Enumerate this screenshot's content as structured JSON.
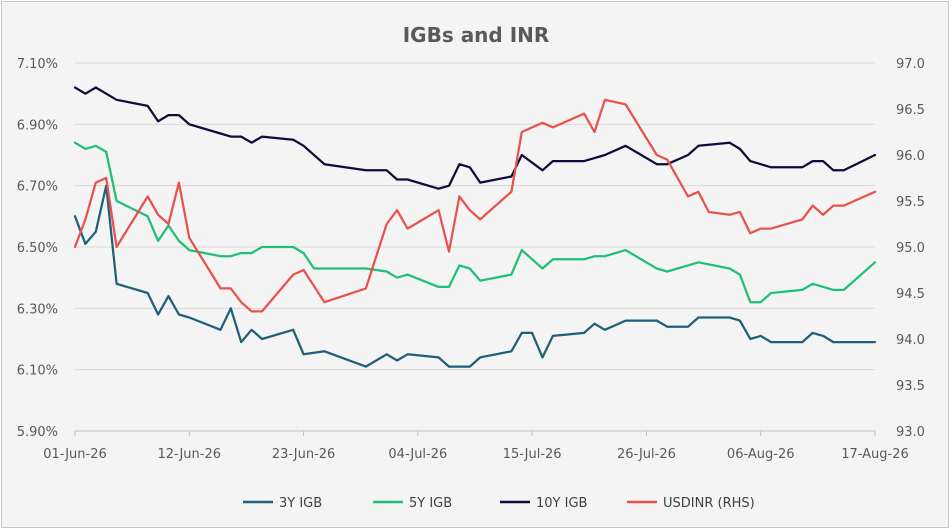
{
  "chart_data": {
    "type": "line",
    "title": "IGBs and INR",
    "xlabel": "",
    "ylabel": "",
    "x_tick_labels": [
      "01-Jun-26",
      "12-Jun-26",
      "23-Jun-26",
      "04-Jul-26",
      "15-Jul-26",
      "26-Jul-26",
      "06-Aug-26",
      "17-Aug-26"
    ],
    "x_range_days": [
      0,
      77
    ],
    "y_left": {
      "ticks": [
        "5.90%",
        "6.10%",
        "6.30%",
        "6.50%",
        "6.70%",
        "6.90%",
        "7.10%"
      ],
      "ylim": [
        5.9,
        7.1
      ]
    },
    "y_right": {
      "ticks": [
        "93.0",
        "93.5",
        "94.0",
        "94.5",
        "95.0",
        "95.5",
        "96.0",
        "96.5",
        "97.0"
      ],
      "ylim": [
        93.0,
        97.0
      ]
    },
    "grid": "horizontal",
    "legend_position": "bottom",
    "series": [
      {
        "name": "3Y IGB",
        "axis": "left",
        "color": "#1f5f7a",
        "points": [
          [
            0,
            6.6
          ],
          [
            1,
            6.51
          ],
          [
            2,
            6.55
          ],
          [
            3,
            6.7
          ],
          [
            4,
            6.38
          ],
          [
            7,
            6.35
          ],
          [
            8,
            6.28
          ],
          [
            9,
            6.34
          ],
          [
            10,
            6.28
          ],
          [
            11,
            6.27
          ],
          [
            14,
            6.23
          ],
          [
            15,
            6.3
          ],
          [
            16,
            6.19
          ],
          [
            17,
            6.23
          ],
          [
            18,
            6.2
          ],
          [
            21,
            6.23
          ],
          [
            22,
            6.15
          ],
          [
            24,
            6.16
          ],
          [
            28,
            6.11
          ],
          [
            30,
            6.15
          ],
          [
            31,
            6.13
          ],
          [
            32,
            6.15
          ],
          [
            35,
            6.14
          ],
          [
            36,
            6.11
          ],
          [
            38,
            6.11
          ],
          [
            39,
            6.14
          ],
          [
            42,
            6.16
          ],
          [
            43,
            6.22
          ],
          [
            44,
            6.22
          ],
          [
            45,
            6.14
          ],
          [
            46,
            6.21
          ],
          [
            49,
            6.22
          ],
          [
            50,
            6.25
          ],
          [
            51,
            6.23
          ],
          [
            53,
            6.26
          ],
          [
            56,
            6.26
          ],
          [
            57,
            6.24
          ],
          [
            59,
            6.24
          ],
          [
            60,
            6.27
          ],
          [
            63,
            6.27
          ],
          [
            64,
            6.26
          ],
          [
            65,
            6.2
          ],
          [
            66,
            6.21
          ],
          [
            67,
            6.19
          ],
          [
            70,
            6.19
          ],
          [
            71,
            6.22
          ],
          [
            72,
            6.21
          ],
          [
            73,
            6.19
          ],
          [
            77,
            6.19
          ]
        ]
      },
      {
        "name": "5Y IGB",
        "axis": "left",
        "color": "#1fbf7a",
        "points": [
          [
            0,
            6.84
          ],
          [
            1,
            6.82
          ],
          [
            2,
            6.83
          ],
          [
            3,
            6.81
          ],
          [
            4,
            6.65
          ],
          [
            7,
            6.6
          ],
          [
            8,
            6.52
          ],
          [
            9,
            6.57
          ],
          [
            10,
            6.52
          ],
          [
            11,
            6.49
          ],
          [
            14,
            6.47
          ],
          [
            15,
            6.47
          ],
          [
            16,
            6.48
          ],
          [
            17,
            6.48
          ],
          [
            18,
            6.5
          ],
          [
            21,
            6.5
          ],
          [
            22,
            6.48
          ],
          [
            23,
            6.43
          ],
          [
            28,
            6.43
          ],
          [
            30,
            6.42
          ],
          [
            31,
            6.4
          ],
          [
            32,
            6.41
          ],
          [
            35,
            6.37
          ],
          [
            36,
            6.37
          ],
          [
            37,
            6.44
          ],
          [
            38,
            6.43
          ],
          [
            39,
            6.39
          ],
          [
            42,
            6.41
          ],
          [
            43,
            6.49
          ],
          [
            45,
            6.43
          ],
          [
            46,
            6.46
          ],
          [
            49,
            6.46
          ],
          [
            50,
            6.47
          ],
          [
            51,
            6.47
          ],
          [
            53,
            6.49
          ],
          [
            56,
            6.43
          ],
          [
            57,
            6.42
          ],
          [
            59,
            6.44
          ],
          [
            60,
            6.45
          ],
          [
            63,
            6.43
          ],
          [
            64,
            6.41
          ],
          [
            65,
            6.32
          ],
          [
            66,
            6.32
          ],
          [
            67,
            6.35
          ],
          [
            70,
            6.36
          ],
          [
            71,
            6.38
          ],
          [
            73,
            6.36
          ],
          [
            74,
            6.36
          ],
          [
            77,
            6.45
          ]
        ]
      },
      {
        "name": "10Y IGB",
        "axis": "left",
        "color": "#0d0d3a",
        "points": [
          [
            0,
            7.02
          ],
          [
            1,
            7.0
          ],
          [
            2,
            7.02
          ],
          [
            3,
            7.0
          ],
          [
            4,
            6.98
          ],
          [
            7,
            6.96
          ],
          [
            8,
            6.91
          ],
          [
            9,
            6.93
          ],
          [
            10,
            6.93
          ],
          [
            11,
            6.9
          ],
          [
            14,
            6.87
          ],
          [
            15,
            6.86
          ],
          [
            16,
            6.86
          ],
          [
            17,
            6.84
          ],
          [
            18,
            6.86
          ],
          [
            21,
            6.85
          ],
          [
            22,
            6.83
          ],
          [
            24,
            6.77
          ],
          [
            28,
            6.75
          ],
          [
            30,
            6.75
          ],
          [
            31,
            6.72
          ],
          [
            32,
            6.72
          ],
          [
            35,
            6.69
          ],
          [
            36,
            6.7
          ],
          [
            37,
            6.77
          ],
          [
            38,
            6.76
          ],
          [
            39,
            6.71
          ],
          [
            42,
            6.73
          ],
          [
            43,
            6.8
          ],
          [
            45,
            6.75
          ],
          [
            46,
            6.78
          ],
          [
            49,
            6.78
          ],
          [
            50,
            6.79
          ],
          [
            51,
            6.8
          ],
          [
            53,
            6.83
          ],
          [
            56,
            6.77
          ],
          [
            57,
            6.77
          ],
          [
            59,
            6.8
          ],
          [
            60,
            6.83
          ],
          [
            63,
            6.84
          ],
          [
            64,
            6.82
          ],
          [
            65,
            6.78
          ],
          [
            66,
            6.77
          ],
          [
            67,
            6.76
          ],
          [
            70,
            6.76
          ],
          [
            71,
            6.78
          ],
          [
            72,
            6.78
          ],
          [
            73,
            6.75
          ],
          [
            74,
            6.75
          ],
          [
            77,
            6.8
          ]
        ]
      },
      {
        "name": "USDINR (RHS)",
        "axis": "right",
        "color": "#e8524a",
        "points": [
          [
            0,
            95.0
          ],
          [
            1,
            95.3
          ],
          [
            2,
            95.7
          ],
          [
            3,
            95.75
          ],
          [
            4,
            95.0
          ],
          [
            7,
            95.55
          ],
          [
            8,
            95.35
          ],
          [
            9,
            95.25
          ],
          [
            10,
            95.7
          ],
          [
            11,
            95.1
          ],
          [
            14,
            94.55
          ],
          [
            15,
            94.55
          ],
          [
            16,
            94.4
          ],
          [
            17,
            94.3
          ],
          [
            18,
            94.3
          ],
          [
            21,
            94.7
          ],
          [
            22,
            94.75
          ],
          [
            24,
            94.4
          ],
          [
            28,
            94.55
          ],
          [
            30,
            95.25
          ],
          [
            31,
            95.4
          ],
          [
            32,
            95.2
          ],
          [
            35,
            95.4
          ],
          [
            36,
            94.95
          ],
          [
            37,
            95.55
          ],
          [
            38,
            95.4
          ],
          [
            39,
            95.3
          ],
          [
            42,
            95.6
          ],
          [
            43,
            96.25
          ],
          [
            45,
            96.35
          ],
          [
            46,
            96.3
          ],
          [
            49,
            96.45
          ],
          [
            50,
            96.25
          ],
          [
            51,
            96.6
          ],
          [
            53,
            96.55
          ],
          [
            56,
            96.0
          ],
          [
            57,
            95.95
          ],
          [
            59,
            95.55
          ],
          [
            60,
            95.6
          ],
          [
            61,
            95.38
          ],
          [
            63,
            95.35
          ],
          [
            64,
            95.38
          ],
          [
            65,
            95.15
          ],
          [
            66,
            95.2
          ],
          [
            67,
            95.2
          ],
          [
            70,
            95.3
          ],
          [
            71,
            95.45
          ],
          [
            72,
            95.35
          ],
          [
            73,
            95.45
          ],
          [
            74,
            95.45
          ],
          [
            77,
            95.6
          ]
        ]
      }
    ]
  }
}
